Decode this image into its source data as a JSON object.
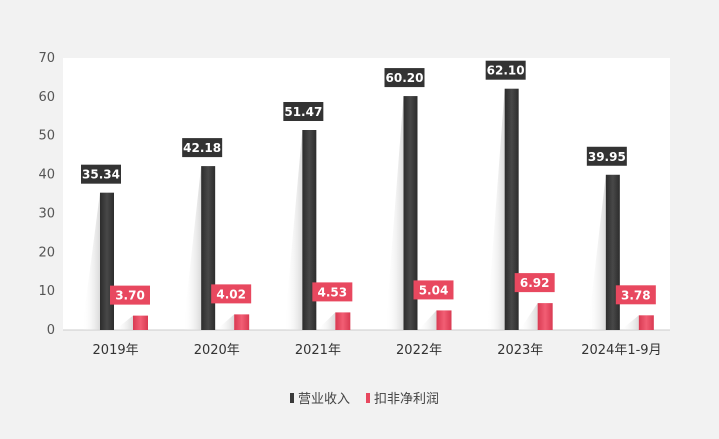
{
  "chart_data": {
    "type": "bar",
    "categories": [
      "2019年",
      "2020年",
      "2021年",
      "2022年",
      "2023年",
      "2024年1-9月"
    ],
    "series": [
      {
        "name": "营业收入",
        "values": [
          35.34,
          42.18,
          51.47,
          60.2,
          62.1,
          39.95
        ],
        "labels": [
          "35.34",
          "42.18",
          "51.47",
          "60.20",
          "62.10",
          "39.95"
        ],
        "color": "#3a3a3a"
      },
      {
        "name": "扣非净利润",
        "values": [
          3.7,
          4.02,
          4.53,
          5.04,
          6.92,
          3.78
        ],
        "labels": [
          "3.70",
          "4.02",
          "4.53",
          "5.04",
          "6.92",
          "3.78"
        ],
        "color": "#e8485f"
      }
    ],
    "yticks": [
      "0",
      "10",
      "20",
      "30",
      "40",
      "50",
      "60",
      "70"
    ],
    "ylim": [
      0,
      70
    ],
    "grid": false,
    "legend": "bottom-center"
  }
}
